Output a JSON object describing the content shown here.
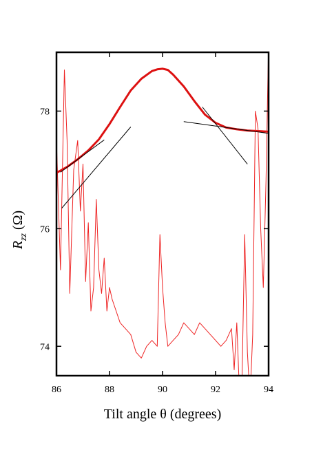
{
  "chart_data": {
    "type": "line",
    "xlabel": "Tilt angle θ (degrees)",
    "ylabel_symbol": "R",
    "ylabel_subscript": "zz",
    "ylabel_unit": "(Ω)",
    "xlim": [
      86,
      94
    ],
    "ylim": [
      73.5,
      79.0
    ],
    "x_ticks": [
      86,
      88,
      90,
      92,
      94
    ],
    "y_ticks": [
      74,
      76,
      78
    ],
    "grid": false,
    "series": [
      {
        "color": "#dd1111",
        "style": "thick smooth",
        "x": [
          86.0,
          86.4,
          86.8,
          87.2,
          87.6,
          88.0,
          88.4,
          88.8,
          89.2,
          89.6,
          89.8,
          90.0,
          90.2,
          90.4,
          90.8,
          91.2,
          91.6,
          92.0,
          92.4,
          92.8,
          93.2,
          93.6,
          94.0
        ],
        "y": [
          76.95,
          77.05,
          77.18,
          77.33,
          77.52,
          77.78,
          78.07,
          78.35,
          78.55,
          78.68,
          78.71,
          78.72,
          78.7,
          78.62,
          78.42,
          78.17,
          77.94,
          77.8,
          77.72,
          77.69,
          77.67,
          77.66,
          77.65
        ]
      },
      {
        "color": "#ee2222",
        "style": "thin noisy",
        "x": [
          86.0,
          86.15,
          86.3,
          86.4,
          86.5,
          86.65,
          86.8,
          86.9,
          87.0,
          87.1,
          87.2,
          87.3,
          87.4,
          87.5,
          87.6,
          87.7,
          87.8,
          87.9,
          88.0,
          88.1,
          88.25,
          88.4,
          88.6,
          88.8,
          89.0,
          89.2,
          89.4,
          89.6,
          89.8,
          89.9,
          90.0,
          90.1,
          90.2,
          90.4,
          90.6,
          90.8,
          91.0,
          91.2,
          91.4,
          91.6,
          91.8,
          92.0,
          92.2,
          92.4,
          92.6,
          92.7,
          92.8,
          92.9,
          93.0,
          93.1,
          93.2,
          93.3,
          93.4,
          93.5,
          93.6,
          93.7,
          93.8,
          93.9,
          94.0
        ],
        "y": [
          77.5,
          75.3,
          78.7,
          77.5,
          74.9,
          77.0,
          77.5,
          76.3,
          77.1,
          75.1,
          76.1,
          74.6,
          75.0,
          76.5,
          75.3,
          74.9,
          75.5,
          74.6,
          75.0,
          74.8,
          74.6,
          74.4,
          74.3,
          74.2,
          73.9,
          73.8,
          74.0,
          74.1,
          74.0,
          75.9,
          75.0,
          74.4,
          74.0,
          74.1,
          74.2,
          74.4,
          74.3,
          74.2,
          74.4,
          74.3,
          74.2,
          74.1,
          74.0,
          74.1,
          74.3,
          73.6,
          74.4,
          73.2,
          73.5,
          75.9,
          73.9,
          73.1,
          74.2,
          78.0,
          77.7,
          76.0,
          75.0,
          76.8,
          79.2
        ]
      },
      {
        "color": "#000000",
        "style": "tangent",
        "x": [
          86.2,
          88.8
        ],
        "y": [
          76.35,
          77.73
        ]
      },
      {
        "color": "#000000",
        "style": "tangent",
        "x": [
          86.15,
          87.8
        ],
        "y": [
          76.96,
          77.51
        ]
      },
      {
        "color": "#000000",
        "style": "tangent",
        "x": [
          90.8,
          94.0
        ],
        "y": [
          77.82,
          77.62
        ]
      },
      {
        "color": "#000000",
        "style": "tangent",
        "x": [
          91.5,
          93.2
        ],
        "y": [
          78.07,
          77.1
        ]
      }
    ]
  }
}
